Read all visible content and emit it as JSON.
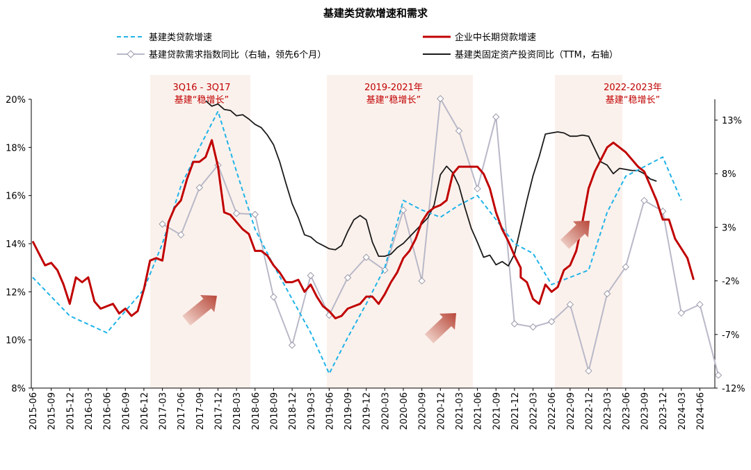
{
  "chart_data": {
    "type": "line",
    "title": "基建类贷款增速和需求",
    "legend": [
      {
        "name": "基建类贷款增速",
        "color": "#1fb3e8",
        "style": "dashed"
      },
      {
        "name": "企业中长期贷款增速",
        "color": "#c00000",
        "style": "solid"
      },
      {
        "name": "基建贷款需求指数同比（右轴，领先6个月）",
        "color": "#b8b8c8",
        "style": "marker"
      },
      {
        "name": "基建类固定资产投资同比（TTM，右轴）",
        "color": "#1a1a1a",
        "style": "solid"
      }
    ],
    "left_axis": {
      "ticks": [
        "20%",
        "18%",
        "16%",
        "14%",
        "12%",
        "10%",
        "8%"
      ],
      "ylim": [
        8,
        20
      ]
    },
    "right_axis": {
      "ticks": [
        "13%",
        "8%",
        "3%",
        "-2%",
        "-7%",
        "-12%"
      ],
      "ylim": [
        -12,
        15
      ]
    },
    "x_labels": [
      "2015-06",
      "2015-09",
      "2015-12",
      "2016-03",
      "2016-06",
      "2016-09",
      "2016-12",
      "2017-03",
      "2017-06",
      "2017-09",
      "2017-12",
      "2018-03",
      "2018-06",
      "2018-09",
      "2018-12",
      "2019-03",
      "2019-06",
      "2019-09",
      "2019-12",
      "2020-03",
      "2020-06",
      "2020-09",
      "2020-12",
      "2021-03",
      "2021-06",
      "2021-09",
      "2021-12",
      "2022-03",
      "2022-06",
      "2022-09",
      "2022-12",
      "2023-03",
      "2023-06",
      "2023-09",
      "2023-12",
      "2024-03",
      "2024-06"
    ],
    "bands": [
      {
        "from": "2016-12",
        "to": "2018-03",
        "label_lines": [
          "3Q16 - 3Q17",
          "基建“稳增长”"
        ]
      },
      {
        "from": "2019-06",
        "to": "2021-06",
        "label_lines": [
          "2019-2021年",
          "基建“稳增长”"
        ]
      },
      {
        "from": "2022-06",
        "to": "2023-06",
        "label_lines": [
          "2022-2023年",
          "基建“稳增长”"
        ]
      }
    ],
    "series": [
      {
        "name": "基建类贷款增速",
        "axis": "left",
        "points": [
          [
            "2015-06",
            12.6
          ],
          [
            "2015-12",
            11.0
          ],
          [
            "2016-06",
            10.3
          ],
          [
            "2016-12",
            12.1
          ],
          [
            "2017-03",
            14.0
          ],
          [
            "2017-06",
            16.4
          ],
          [
            "2017-09",
            18.0
          ],
          [
            "2017-12",
            19.5
          ],
          [
            "2018-03",
            17.0
          ],
          [
            "2018-06",
            14.6
          ],
          [
            "2018-09",
            13.1
          ],
          [
            "2018-12",
            11.7
          ],
          [
            "2019-03",
            10.3
          ],
          [
            "2019-06",
            8.6
          ],
          [
            "2019-09",
            10.1
          ],
          [
            "2019-12",
            11.5
          ],
          [
            "2020-03",
            13.0
          ],
          [
            "2020-06",
            15.8
          ],
          [
            "2020-09",
            15.4
          ],
          [
            "2020-12",
            15.1
          ],
          [
            "2021-03",
            15.6
          ],
          [
            "2021-06",
            16.0
          ],
          [
            "2021-09",
            15.0
          ],
          [
            "2021-12",
            14.0
          ],
          [
            "2022-03",
            13.6
          ],
          [
            "2022-06",
            12.3
          ],
          [
            "2022-09",
            12.6
          ],
          [
            "2022-12",
            12.9
          ],
          [
            "2023-03",
            15.3
          ],
          [
            "2023-06",
            16.8
          ],
          [
            "2023-09",
            17.2
          ],
          [
            "2023-12",
            17.6
          ],
          [
            "2024-03",
            15.8
          ]
        ]
      },
      {
        "name": "企业中长期贷款增速",
        "axis": "left",
        "points": [
          [
            "2015-06",
            14.1
          ],
          [
            "2015-07",
            13.6
          ],
          [
            "2015-08",
            13.1
          ],
          [
            "2015-09",
            13.2
          ],
          [
            "2015-10",
            12.9
          ],
          [
            "2015-11",
            12.3
          ],
          [
            "2015-12",
            11.5
          ],
          [
            "2016-01",
            12.6
          ],
          [
            "2016-02",
            12.4
          ],
          [
            "2016-03",
            12.6
          ],
          [
            "2016-04",
            11.6
          ],
          [
            "2016-05",
            11.3
          ],
          [
            "2016-06",
            11.4
          ],
          [
            "2016-07",
            11.5
          ],
          [
            "2016-08",
            11.1
          ],
          [
            "2016-09",
            11.3
          ],
          [
            "2016-10",
            11.0
          ],
          [
            "2016-11",
            11.2
          ],
          [
            "2016-12",
            12.1
          ],
          [
            "2017-01",
            13.3
          ],
          [
            "2017-02",
            13.4
          ],
          [
            "2017-03",
            13.3
          ],
          [
            "2017-04",
            14.9
          ],
          [
            "2017-05",
            15.5
          ],
          [
            "2017-06",
            15.8
          ],
          [
            "2017-07",
            16.7
          ],
          [
            "2017-08",
            17.4
          ],
          [
            "2017-09",
            17.4
          ],
          [
            "2017-10",
            17.6
          ],
          [
            "2017-11",
            18.3
          ],
          [
            "2017-12",
            17.2
          ],
          [
            "2018-01",
            15.3
          ],
          [
            "2018-02",
            15.2
          ],
          [
            "2018-03",
            14.9
          ],
          [
            "2018-04",
            14.6
          ],
          [
            "2018-05",
            14.4
          ],
          [
            "2018-06",
            13.7
          ],
          [
            "2018-07",
            13.7
          ],
          [
            "2018-08",
            13.5
          ],
          [
            "2018-09",
            13.1
          ],
          [
            "2018-10",
            12.8
          ],
          [
            "2018-11",
            12.4
          ],
          [
            "2018-12",
            12.4
          ],
          [
            "2019-01",
            12.5
          ],
          [
            "2019-02",
            12.0
          ],
          [
            "2019-03",
            12.3
          ],
          [
            "2019-04",
            11.8
          ],
          [
            "2019-05",
            11.4
          ],
          [
            "2019-06",
            11.2
          ],
          [
            "2019-07",
            10.9
          ],
          [
            "2019-08",
            11.0
          ],
          [
            "2019-09",
            11.3
          ],
          [
            "2019-10",
            11.4
          ],
          [
            "2019-11",
            11.5
          ],
          [
            "2019-12",
            11.8
          ],
          [
            "2020-01",
            11.8
          ],
          [
            "2020-02",
            11.5
          ],
          [
            "2020-03",
            11.9
          ],
          [
            "2020-04",
            12.4
          ],
          [
            "2020-05",
            12.8
          ],
          [
            "2020-06",
            13.4
          ],
          [
            "2020-07",
            13.7
          ],
          [
            "2020-08",
            14.2
          ],
          [
            "2020-09",
            14.9
          ],
          [
            "2020-10",
            15.3
          ],
          [
            "2020-11",
            15.5
          ],
          [
            "2020-12",
            15.6
          ],
          [
            "2021-01",
            15.8
          ],
          [
            "2021-02",
            16.9
          ],
          [
            "2021-03",
            17.2
          ],
          [
            "2021-04",
            17.2
          ],
          [
            "2021-05",
            17.2
          ],
          [
            "2021-06",
            17.2
          ],
          [
            "2021-07",
            16.9
          ],
          [
            "2021-08",
            16.3
          ],
          [
            "2021-09",
            15.3
          ],
          [
            "2021-10",
            14.6
          ],
          [
            "2021-11",
            14.1
          ],
          [
            "2021-12",
            13.5
          ],
          [
            "2021-13",
            13.0
          ],
          [
            "2022-01",
            12.6
          ],
          [
            "2022-02",
            12.4
          ],
          [
            "2022-03",
            11.7
          ],
          [
            "2022-04",
            11.5
          ],
          [
            "2022-05",
            12.3
          ],
          [
            "2022-06",
            12.0
          ],
          [
            "2022-07",
            12.2
          ],
          [
            "2022-08",
            12.9
          ],
          [
            "2022-09",
            13.1
          ],
          [
            "2022-10",
            13.7
          ],
          [
            "2022-11",
            14.9
          ],
          [
            "2022-12",
            16.3
          ],
          [
            "2023-01",
            17.0
          ],
          [
            "2023-02",
            17.5
          ],
          [
            "2023-03",
            18.0
          ],
          [
            "2023-04",
            18.2
          ],
          [
            "2023-05",
            18.0
          ],
          [
            "2023-06",
            17.8
          ],
          [
            "2023-07",
            17.5
          ],
          [
            "2023-08",
            17.2
          ],
          [
            "2023-09",
            17.0
          ],
          [
            "2023-10",
            16.4
          ],
          [
            "2023-11",
            15.8
          ],
          [
            "2023-12",
            15.0
          ],
          [
            "2024-01",
            15.0
          ],
          [
            "2024-02",
            14.2
          ],
          [
            "2024-03",
            13.8
          ],
          [
            "2024-04",
            13.4
          ],
          [
            "2024-05",
            12.5
          ]
        ]
      },
      {
        "name": "基建贷款需求指数同比（右轴，领先6个月）",
        "axis": "right",
        "points": [
          [
            "2017-03",
            3.3
          ],
          [
            "2017-06",
            2.3
          ],
          [
            "2017-09",
            6.7
          ],
          [
            "2017-12",
            8.8
          ],
          [
            "2018-03",
            4.3
          ],
          [
            "2018-06",
            4.2
          ],
          [
            "2018-09",
            -3.5
          ],
          [
            "2018-12",
            -8.0
          ],
          [
            "2019-03",
            -1.5
          ],
          [
            "2019-06",
            -5.2
          ],
          [
            "2019-09",
            -1.7
          ],
          [
            "2019-12",
            0.2
          ],
          [
            "2020-03",
            -1.0
          ],
          [
            "2020-06",
            4.6
          ],
          [
            "2020-09",
            -2.0
          ],
          [
            "2020-12",
            15.0
          ],
          [
            "2021-03",
            12.0
          ],
          [
            "2021-06",
            6.6
          ],
          [
            "2021-09",
            13.3
          ],
          [
            "2021-12",
            -6.0
          ],
          [
            "2022-03",
            -6.3
          ],
          [
            "2022-06",
            -5.8
          ],
          [
            "2022-09",
            -4.2
          ],
          [
            "2022-12",
            -10.4
          ],
          [
            "2023-03",
            -3.2
          ],
          [
            "2023-06",
            -0.7
          ],
          [
            "2023-09",
            5.5
          ],
          [
            "2023-12",
            4.5
          ],
          [
            "2024-03",
            -5.0
          ],
          [
            "2024-06",
            -4.2
          ],
          [
            "2024-09",
            -10.8
          ]
        ]
      },
      {
        "name": "基建类固定资产投资同比（TTM，右轴）",
        "axis": "right",
        "points": [
          [
            "2017-10",
            14.8
          ],
          [
            "2017-11",
            14.3
          ],
          [
            "2017-12",
            14.5
          ],
          [
            "2018-01",
            14.0
          ],
          [
            "2018-02",
            13.9
          ],
          [
            "2018-03",
            13.4
          ],
          [
            "2018-04",
            13.5
          ],
          [
            "2018-05",
            13.1
          ],
          [
            "2018-06",
            12.6
          ],
          [
            "2018-07",
            12.3
          ],
          [
            "2018-08",
            11.6
          ],
          [
            "2018-09",
            10.7
          ],
          [
            "2018-10",
            9.1
          ],
          [
            "2018-11",
            7.1
          ],
          [
            "2018-12",
            5.2
          ],
          [
            "2019-01",
            3.9
          ],
          [
            "2019-02",
            2.3
          ],
          [
            "2019-03",
            2.1
          ],
          [
            "2019-04",
            1.6
          ],
          [
            "2019-05",
            1.3
          ],
          [
            "2019-06",
            1.0
          ],
          [
            "2019-07",
            0.9
          ],
          [
            "2019-08",
            1.3
          ],
          [
            "2019-09",
            2.6
          ],
          [
            "2019-10",
            3.7
          ],
          [
            "2019-11",
            4.1
          ],
          [
            "2019-12",
            3.7
          ],
          [
            "2020-01",
            1.6
          ],
          [
            "2020-02",
            0.3
          ],
          [
            "2020-03",
            0.3
          ],
          [
            "2020-04",
            0.5
          ],
          [
            "2020-05",
            1.1
          ],
          [
            "2020-06",
            1.5
          ],
          [
            "2020-07",
            2.1
          ],
          [
            "2020-08",
            2.7
          ],
          [
            "2020-09",
            3.3
          ],
          [
            "2020-10",
            3.9
          ],
          [
            "2020-11",
            5.1
          ],
          [
            "2020-12",
            7.9
          ],
          [
            "2021-01",
            8.7
          ],
          [
            "2021-02",
            8.1
          ],
          [
            "2021-03",
            6.9
          ],
          [
            "2021-04",
            4.8
          ],
          [
            "2021-05",
            2.9
          ],
          [
            "2021-06",
            1.6
          ],
          [
            "2021-07",
            0.2
          ],
          [
            "2021-08",
            0.4
          ],
          [
            "2021-09",
            -0.5
          ],
          [
            "2021-10",
            -0.2
          ],
          [
            "2021-11",
            -0.6
          ],
          [
            "2021-12",
            0.5
          ],
          [
            "2022-01",
            3.0
          ],
          [
            "2022-02",
            5.5
          ],
          [
            "2022-03",
            7.8
          ],
          [
            "2022-04",
            9.6
          ],
          [
            "2022-05",
            11.7
          ],
          [
            "2022-06",
            11.8
          ],
          [
            "2022-07",
            11.9
          ],
          [
            "2022-08",
            11.8
          ],
          [
            "2022-09",
            11.5
          ],
          [
            "2022-10",
            11.5
          ],
          [
            "2022-11",
            11.6
          ],
          [
            "2022-12",
            11.5
          ],
          [
            "2023-01",
            10.3
          ],
          [
            "2023-02",
            9.1
          ],
          [
            "2023-03",
            8.8
          ],
          [
            "2023-04",
            8.0
          ],
          [
            "2023-05",
            8.5
          ],
          [
            "2023-06",
            8.4
          ],
          [
            "2023-07",
            8.3
          ],
          [
            "2023-08",
            8.3
          ],
          [
            "2023-09",
            8.0
          ],
          [
            "2023-10",
            7.5
          ],
          [
            "2023-11",
            7.3
          ]
        ]
      }
    ]
  }
}
